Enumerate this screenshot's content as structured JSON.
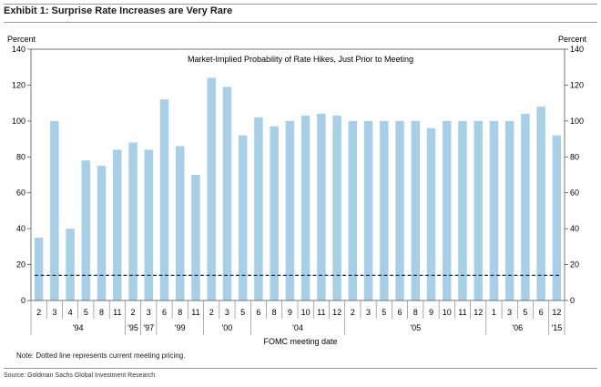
{
  "header": {
    "exhibit_title": "Exhibit 1: Surprise Rate Increases are Very Rare"
  },
  "footer": {
    "note": "Note: Dotted line represents current meeting pricing.",
    "source": "Source: Goldman Sachs Global Investment Research"
  },
  "chart_data": {
    "type": "bar",
    "title": "Market-Implied Probability of Rate Hikes, Just Prior to Meeting",
    "xlabel": "FOMC meeting date",
    "ylabel_left": "Percent",
    "ylabel_right": "Percent",
    "ylim": [
      0,
      140
    ],
    "yticks": [
      0,
      20,
      40,
      60,
      80,
      100,
      120,
      140
    ],
    "grid": false,
    "bar_color": "#a8cfe8",
    "reference_line": {
      "value": 14,
      "style": "dashed",
      "color": "#1f3050"
    },
    "categories": [
      "2",
      "3",
      "4",
      "5",
      "8",
      "11",
      "2",
      "3",
      "6",
      "8",
      "11",
      "2",
      "3",
      "5",
      "6",
      "8",
      "9",
      "10",
      "11",
      "12",
      "2",
      "3",
      "5",
      "6",
      "8",
      "9",
      "10",
      "11",
      "12",
      "1",
      "3",
      "5",
      "6",
      "12"
    ],
    "values": [
      35,
      100,
      40,
      78,
      75,
      84,
      88,
      84,
      112,
      86,
      70,
      124,
      119,
      92,
      102,
      97,
      100,
      103,
      104,
      103,
      100,
      100,
      100,
      100,
      100,
      96,
      100,
      100,
      100,
      100,
      100,
      104,
      108,
      92
    ],
    "year_groups": [
      {
        "label": "'94",
        "start": 0,
        "end": 5
      },
      {
        "label": "'95",
        "start": 6,
        "end": 6
      },
      {
        "label": "'97",
        "start": 7,
        "end": 7
      },
      {
        "label": "'99",
        "start": 8,
        "end": 10
      },
      {
        "label": "'00",
        "start": 11,
        "end": 13
      },
      {
        "label": "'04",
        "start": 14,
        "end": 19
      },
      {
        "label": "'05",
        "start": 20,
        "end": 28
      },
      {
        "label": "'06",
        "start": 29,
        "end": 32
      },
      {
        "label": "'15",
        "start": 33,
        "end": 33
      }
    ]
  }
}
